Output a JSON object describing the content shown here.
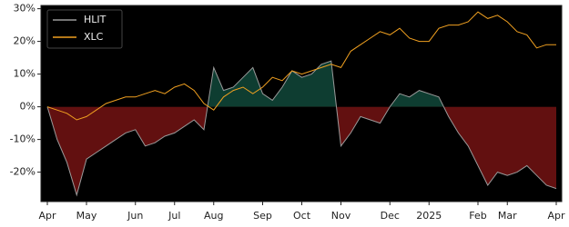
{
  "chart_data": {
    "type": "line",
    "categories": [
      "Apr",
      null,
      null,
      null,
      "May",
      null,
      null,
      null,
      null,
      "Jun",
      null,
      null,
      null,
      "Jul",
      null,
      null,
      null,
      "Aug",
      null,
      null,
      null,
      null,
      "Sep",
      null,
      null,
      null,
      "Oct",
      null,
      null,
      null,
      "Nov",
      null,
      null,
      null,
      null,
      "Dec",
      null,
      null,
      null,
      "2025",
      null,
      null,
      null,
      null,
      "Feb",
      null,
      null,
      "Mar",
      null,
      null,
      null,
      null,
      "Apr"
    ],
    "series": [
      {
        "name": "HLIT",
        "color": "#9a9a9a",
        "fill_above": "#0e3d31",
        "fill_below": "#621010",
        "values": [
          0,
          -10,
          -17,
          -27,
          -16,
          -14,
          -12,
          -10,
          -8,
          -7,
          -12,
          -11,
          -9,
          -8,
          -6,
          -4,
          -7,
          12,
          5,
          6,
          9,
          12,
          4,
          2,
          6,
          11,
          9,
          10,
          13,
          14,
          -12,
          -8,
          -3,
          -4,
          -5,
          0,
          4,
          3,
          5,
          4,
          3,
          -3,
          -8,
          -12,
          -18,
          -24,
          -20,
          -21,
          -20,
          -18,
          -21,
          -24,
          -25
        ]
      },
      {
        "name": "XLC",
        "color": "#f0a020",
        "values": [
          0,
          -1,
          -2,
          -4,
          -3,
          -1,
          1,
          2,
          3,
          3,
          4,
          5,
          4,
          6,
          7,
          5,
          1,
          -1,
          3,
          5,
          6,
          4,
          6,
          9,
          8,
          11,
          10,
          11,
          12,
          13,
          12,
          17,
          19,
          21,
          23,
          22,
          24,
          21,
          20,
          20,
          24,
          25,
          25,
          26,
          29,
          27,
          28,
          26,
          23,
          22,
          18,
          19,
          19
        ]
      }
    ],
    "ylim": [
      -29,
      31
    ],
    "yticks": [
      {
        "value": -20,
        "label": "-20%"
      },
      {
        "value": -10,
        "label": "-10%"
      },
      {
        "value": 0,
        "label": "0%"
      },
      {
        "value": 10,
        "label": "10%"
      },
      {
        "value": 20,
        "label": "20%"
      },
      {
        "value": 30,
        "label": "30%"
      }
    ],
    "legend": "upper left"
  }
}
